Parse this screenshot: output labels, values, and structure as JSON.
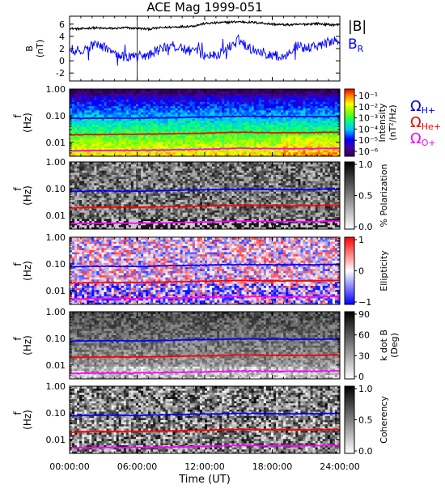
{
  "chart_data": {
    "title": "ACE Mag 1999-051",
    "type": "multi-panel spectrogram",
    "x_axis": {
      "label": "Time (UT)",
      "range_hours": [
        0,
        24
      ],
      "ticks": [
        "00:00:00",
        "06:00:00",
        "12:00:00",
        "18:00:00",
        "24:00:00"
      ]
    },
    "freq_ticks": [
      "1.00",
      "0.10",
      "0.01"
    ],
    "freq_range_hz": [
      0.003,
      1.0
    ],
    "panels": [
      {
        "id": "field",
        "type": "line",
        "ylabel": "B",
        "yunit": "(nT)",
        "yticks": [
          "6",
          "4",
          "2",
          "0",
          "-2"
        ],
        "ylim": [
          -3.3,
          7.3
        ],
        "series": [
          {
            "name": "|B|",
            "color": "#000000",
            "x_hours": [
              0,
              1,
              2,
              3,
              4,
              5,
              6,
              7,
              8,
              9,
              10,
              11,
              12,
              13,
              14,
              15,
              16,
              17,
              18,
              19,
              20,
              21,
              22,
              23,
              24
            ],
            "values": [
              5.3,
              5.2,
              5.4,
              5.3,
              5.3,
              5.4,
              5.3,
              5.2,
              5.4,
              5.5,
              5.6,
              5.7,
              6.1,
              6.2,
              6.3,
              6.4,
              6.3,
              6.2,
              6.0,
              5.9,
              5.9,
              6.0,
              6.1,
              5.9,
              5.9
            ]
          },
          {
            "name": "B_R",
            "color": "#0000ff",
            "x_hours": [
              0,
              1,
              2,
              3,
              4,
              5,
              6,
              7,
              8,
              9,
              10,
              11,
              12,
              13,
              14,
              15,
              16,
              17,
              18,
              19,
              20,
              21,
              22,
              23,
              24
            ],
            "values": [
              2.0,
              1.5,
              2.5,
              2.3,
              1.0,
              0.5,
              1.0,
              0.8,
              2.0,
              2.5,
              2.0,
              1.5,
              1.0,
              0.8,
              2.0,
              3.5,
              2.0,
              1.5,
              1.0,
              0.5,
              2.5,
              2.0,
              2.5,
              3.0,
              3.5
            ]
          }
        ]
      },
      {
        "id": "intensity",
        "type": "heatmap",
        "ylabel": "f",
        "yunit": "(Hz)",
        "colorbar_label": "Intensity",
        "colorbar_unit": "(nT²/Hz)",
        "colorbar_scale": "log",
        "colorbar_ticks": [
          "10⁻¹",
          "10⁻²",
          "10⁻³",
          "10⁻⁴",
          "10⁻⁵",
          "10⁻⁶"
        ],
        "colormap": "rainbow"
      },
      {
        "id": "polarization",
        "type": "heatmap",
        "ylabel": "f",
        "yunit": "(Hz)",
        "colorbar_label": "% Polarization",
        "colorbar_ticks": [
          "1.0",
          "0.5",
          "0.0"
        ],
        "colormap": "grayscale"
      },
      {
        "id": "ellipticity",
        "type": "heatmap",
        "ylabel": "f",
        "yunit": "(Hz)",
        "colorbar_label": "Ellipticity",
        "colorbar_ticks": [
          "1",
          "0",
          "−1"
        ],
        "colormap": "blue-white-red"
      },
      {
        "id": "kdotb",
        "type": "heatmap",
        "ylabel": "f",
        "yunit": "(Hz)",
        "colorbar_label": "k dot B",
        "colorbar_unit": "(Deg)",
        "colorbar_ticks": [
          "90",
          "60",
          "30",
          "0"
        ],
        "colormap": "grayscale"
      },
      {
        "id": "coherency",
        "type": "heatmap",
        "ylabel": "f",
        "yunit": "(Hz)",
        "colorbar_label": "Coherency",
        "colorbar_ticks": [
          "1.0",
          "0.5",
          "0.0"
        ],
        "colormap": "grayscale"
      }
    ],
    "overlay_lines": [
      {
        "name": "Ω H+",
        "symbol": "Ω",
        "subscript": "H+",
        "color": "#0000ff",
        "x_hours": [
          0,
          3,
          6,
          9,
          12,
          15,
          18,
          21,
          24
        ],
        "values_hz": [
          0.078,
          0.082,
          0.08,
          0.085,
          0.09,
          0.095,
          0.093,
          0.092,
          0.095
        ]
      },
      {
        "name": "Ω He+",
        "symbol": "Ω",
        "subscript": "He+",
        "color": "#ff0000",
        "x_hours": [
          0,
          3,
          6,
          9,
          12,
          15,
          18,
          21,
          24
        ],
        "values_hz": [
          0.019,
          0.02,
          0.02,
          0.021,
          0.022,
          0.024,
          0.023,
          0.023,
          0.024
        ]
      },
      {
        "name": "Ω O+",
        "symbol": "Ω",
        "subscript": "O+",
        "color": "#ff00ff",
        "x_hours": [
          0,
          3,
          6,
          9,
          12,
          15,
          18,
          21,
          24
        ],
        "values_hz": [
          0.0048,
          0.005,
          0.005,
          0.0052,
          0.0055,
          0.006,
          0.0058,
          0.0058,
          0.006
        ]
      }
    ],
    "legend": {
      "field": [
        {
          "text": "|B|",
          "sub": "",
          "color": "#000000"
        },
        {
          "text": "B",
          "sub": "R",
          "color": "#0000ff"
        }
      ],
      "ion": [
        {
          "text": "Ω",
          "sub": "H+",
          "color": "#0000ff"
        },
        {
          "text": "Ω",
          "sub": "He+",
          "color": "#ff0000"
        },
        {
          "text": "Ω",
          "sub": "O+",
          "color": "#ff00ff"
        }
      ]
    }
  }
}
